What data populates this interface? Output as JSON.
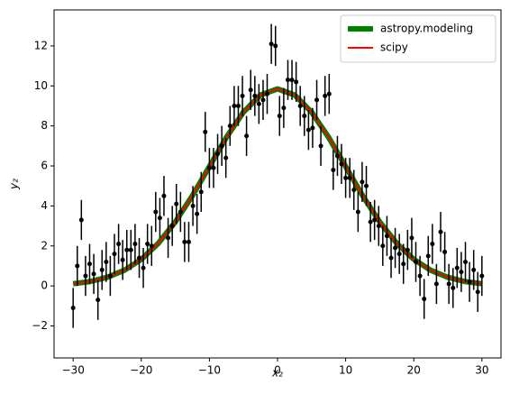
{
  "chart_data": {
    "type": "line",
    "xlabel": "x₂",
    "ylabel": "y₂",
    "xlim": [
      -32.8,
      32.8
    ],
    "ylim": [
      -3.6,
      13.8
    ],
    "xticks": [
      {
        "value": -30,
        "label": "−30"
      },
      {
        "value": -20,
        "label": "−20"
      },
      {
        "value": -10,
        "label": "−10"
      },
      0,
      10,
      20,
      30
    ],
    "yticks": [
      {
        "value": -2,
        "label": "−2"
      },
      0,
      2,
      4,
      6,
      8,
      10,
      12
    ],
    "legend": "upper right",
    "series": [
      {
        "name": "astropy.modeling",
        "color": "#008000",
        "linewidth": 6,
        "x": [
          -30,
          -27.5,
          -25,
          -22.5,
          -20,
          -17.5,
          -15,
          -12.5,
          -10,
          -7.5,
          -5,
          -2.5,
          0,
          2.5,
          5,
          7.5,
          10,
          12.5,
          15,
          17.5,
          20,
          22.5,
          25,
          27.5,
          30
        ],
        "values": [
          0.11,
          0.22,
          0.43,
          0.78,
          1.33,
          2.13,
          3.2,
          4.51,
          5.97,
          7.43,
          8.69,
          9.55,
          9.85,
          9.55,
          8.69,
          7.43,
          5.97,
          4.51,
          3.2,
          2.13,
          1.33,
          0.78,
          0.43,
          0.22,
          0.11
        ]
      },
      {
        "name": "scipy",
        "color": "#ff0000",
        "linewidth": 2,
        "x": [
          -30,
          -27.5,
          -25,
          -22.5,
          -20,
          -17.5,
          -15,
          -12.5,
          -10,
          -7.5,
          -5,
          -2.5,
          0,
          2.5,
          5,
          7.5,
          10,
          12.5,
          15,
          17.5,
          20,
          22.5,
          25,
          27.5,
          30
        ],
        "values": [
          0.11,
          0.22,
          0.43,
          0.78,
          1.33,
          2.13,
          3.2,
          4.51,
          5.97,
          7.43,
          8.69,
          9.55,
          9.85,
          9.55,
          8.69,
          7.43,
          5.97,
          4.51,
          3.2,
          2.13,
          1.33,
          0.78,
          0.43,
          0.22,
          0.11
        ]
      },
      {
        "style": "errorbar",
        "color": "#000000",
        "yerr": 1,
        "x": [
          -30,
          -29.39,
          -28.79,
          -28.18,
          -27.58,
          -26.97,
          -26.36,
          -25.76,
          -25.15,
          -24.55,
          -23.94,
          -23.33,
          -22.73,
          -22.12,
          -21.52,
          -20.91,
          -20.3,
          -19.7,
          -19.09,
          -18.48,
          -17.88,
          -17.27,
          -16.67,
          -16.06,
          -15.45,
          -14.85,
          -14.24,
          -13.64,
          -13.03,
          -12.42,
          -11.82,
          -11.21,
          -10.61,
          -10,
          -9.39,
          -8.79,
          -8.18,
          -7.58,
          -6.97,
          -6.36,
          -5.76,
          -5.15,
          -4.55,
          -3.94,
          -3.33,
          -2.73,
          -2.12,
          -1.52,
          -0.91,
          -0.3,
          0.3,
          0.91,
          1.52,
          2.12,
          2.73,
          3.33,
          3.94,
          4.55,
          5.15,
          5.76,
          6.36,
          6.97,
          7.58,
          8.18,
          8.79,
          9.39,
          10,
          10.61,
          11.21,
          11.82,
          12.42,
          13.03,
          13.64,
          14.24,
          14.85,
          15.45,
          16.06,
          16.67,
          17.27,
          17.88,
          18.48,
          19.09,
          19.7,
          20.3,
          20.91,
          21.52,
          22.12,
          22.73,
          23.33,
          23.94,
          24.55,
          25.15,
          25.76,
          26.36,
          26.97,
          27.58,
          28.18,
          28.79,
          29.39,
          30
        ],
        "values": [
          -1.1,
          1.0,
          3.3,
          0.5,
          1.1,
          0.6,
          -0.7,
          0.8,
          1.2,
          0.5,
          1.6,
          2.1,
          1.3,
          1.8,
          1.8,
          2.1,
          1.4,
          0.9,
          2.1,
          2.0,
          3.7,
          3.4,
          4.5,
          2.4,
          3.0,
          4.1,
          3.7,
          2.2,
          2.2,
          4.0,
          3.6,
          4.7,
          7.7,
          5.9,
          5.9,
          6.6,
          7.0,
          6.4,
          8.0,
          9.0,
          9.0,
          9.5,
          7.5,
          9.8,
          9.5,
          9.1,
          9.3,
          9.6,
          12.1,
          12.0,
          8.5,
          8.9,
          10.3,
          10.3,
          10.2,
          9.0,
          8.5,
          7.8,
          7.9,
          9.3,
          7.0,
          9.5,
          9.6,
          5.8,
          6.5,
          6.1,
          5.4,
          5.4,
          4.8,
          3.7,
          5.2,
          5.0,
          3.2,
          3.3,
          3.0,
          2.0,
          2.5,
          1.4,
          1.9,
          1.6,
          1.1,
          1.8,
          2.4,
          1.2,
          0.5,
          -0.65,
          1.5,
          2.1,
          0.1,
          2.7,
          1.7,
          0.1,
          -0.1,
          0.9,
          0.7,
          1.2,
          0.2,
          0.8,
          -0.3,
          0.5
        ]
      }
    ]
  }
}
